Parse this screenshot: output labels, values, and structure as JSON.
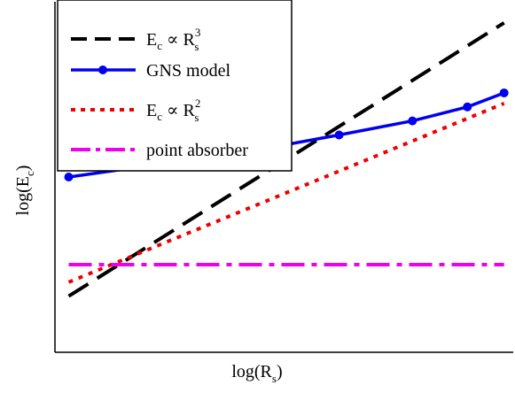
{
  "chart_data": {
    "type": "line",
    "xlabel": {
      "main": "log(R",
      "sub": "s",
      "close": ")"
    },
    "ylabel": {
      "main": "log(E",
      "sub": "c",
      "close": ")"
    },
    "xlim": [
      0,
      1
    ],
    "ylim": [
      0,
      1
    ],
    "grid": false,
    "legend_position": "top-left",
    "series": [
      {
        "key": "cubic",
        "legend": {
          "a": "E",
          "a_sub": "c",
          "op": " ∝ R",
          "b_sub": "s",
          "b_sup": "3"
        },
        "color": "#000000",
        "style": "dashed",
        "markers": false,
        "x": [
          0.03,
          0.98
        ],
        "y": [
          0.16,
          0.94
        ]
      },
      {
        "key": "gns",
        "legend": {
          "text": "GNS model"
        },
        "color": "#0000ee",
        "style": "solid",
        "markers": true,
        "x": [
          0.03,
          0.41,
          0.62,
          0.78,
          0.9,
          0.98
        ],
        "y": [
          0.5,
          0.57,
          0.62,
          0.66,
          0.7,
          0.74
        ]
      },
      {
        "key": "square",
        "legend": {
          "a": "E",
          "a_sub": "c",
          "op": " ∝ R",
          "b_sub": "s",
          "b_sup": "2"
        },
        "color": "#ee0000",
        "style": "dotted",
        "markers": false,
        "x": [
          0.03,
          0.98
        ],
        "y": [
          0.2,
          0.71
        ]
      },
      {
        "key": "point",
        "legend": {
          "text": "point absorber"
        },
        "color": "#ee00ee",
        "style": "dashdot",
        "markers": false,
        "x": [
          0.03,
          0.98
        ],
        "y": [
          0.25,
          0.25
        ]
      }
    ]
  }
}
